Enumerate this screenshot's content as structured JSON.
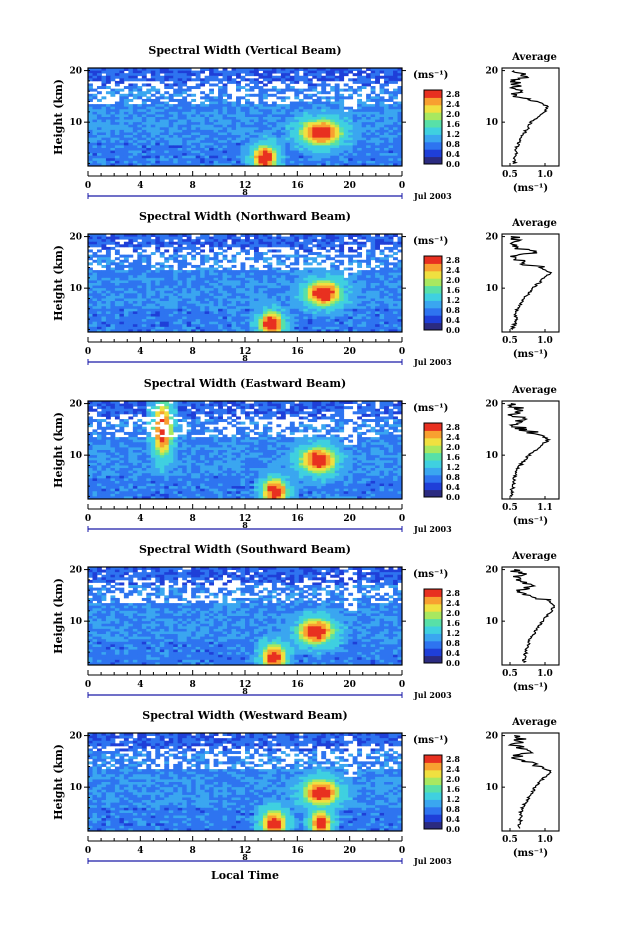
{
  "x_axis_label": "Local Time",
  "date_label": "Jul 2003",
  "day_marker": "8",
  "y_axis_label": "Height (km)",
  "unit_label": "(ms⁻¹)",
  "avg_title": "Average",
  "avg_unit_label": "(ms⁻¹)",
  "colorbar_ticks": [
    "2.8",
    "2.4",
    "2.0",
    "1.6",
    "1.2",
    "0.8",
    "0.4",
    "0.0"
  ],
  "x_tick_labels": [
    "0",
    "4",
    "8",
    "12",
    "16",
    "20",
    "0"
  ],
  "y_tick_labels": [
    "20",
    "10"
  ],
  "colors": {
    "colormap": [
      "#2b2b80",
      "#1f3fd8",
      "#2e74f0",
      "#3aa6f0",
      "#3fd0e0",
      "#58e0a8",
      "#a8e860",
      "#f0e040",
      "#f8a030",
      "#e83020"
    ],
    "axis": "#000000",
    "date_axis": "#1a1aa8"
  },
  "chart_data": [
    {
      "type": "heatmap",
      "title": "Spectral Width (Vertical Beam)",
      "xlabel": "Local Time",
      "ylabel": "Height (km)",
      "xlim": [
        0,
        24
      ],
      "ylim": [
        1.5,
        20.5
      ],
      "colorbar": {
        "label": "(ms⁻¹)",
        "range": [
          0.0,
          2.8
        ]
      },
      "average_profile": {
        "title": "Average",
        "xlabel": "(ms⁻¹)",
        "xlim": [
          0.5,
          1.2
        ],
        "x_tick_labels": [
          "0.5",
          "1.0"
        ],
        "height": [
          2,
          3,
          4,
          5,
          6,
          7,
          8,
          9,
          10,
          11,
          12,
          13,
          14,
          15,
          16,
          17,
          18,
          19,
          20
        ],
        "width": [
          0.65,
          0.66,
          0.67,
          0.68,
          0.7,
          0.74,
          0.78,
          0.82,
          0.86,
          0.95,
          1.02,
          1.06,
          0.95,
          0.72,
          0.68,
          0.7,
          0.66,
          0.78,
          0.65
        ]
      }
    },
    {
      "type": "heatmap",
      "title": "Spectral Width (Northward Beam)",
      "xlabel": "Local Time",
      "ylabel": "Height (km)",
      "xlim": [
        0,
        24
      ],
      "ylim": [
        1.5,
        20.5
      ],
      "colorbar": {
        "label": "(ms⁻¹)",
        "range": [
          0.0,
          2.8
        ]
      },
      "average_profile": {
        "title": "Average",
        "xlabel": "(ms⁻¹)",
        "xlim": [
          0.5,
          1.15
        ],
        "x_tick_labels": [
          "0.5",
          "1.0"
        ],
        "height": [
          2,
          3,
          4,
          5,
          6,
          7,
          8,
          9,
          10,
          11,
          12,
          13,
          14,
          15,
          16,
          17,
          18,
          19,
          20
        ],
        "width": [
          0.62,
          0.64,
          0.66,
          0.66,
          0.68,
          0.72,
          0.76,
          0.8,
          0.84,
          0.92,
          0.98,
          1.05,
          0.95,
          0.7,
          0.62,
          0.85,
          0.6,
          0.7,
          0.6
        ]
      }
    },
    {
      "type": "heatmap",
      "title": "Spectral Width (Eastward Beam)",
      "xlabel": "Local Time",
      "ylabel": "Height (km)",
      "xlim": [
        0,
        24
      ],
      "ylim": [
        1.5,
        20.5
      ],
      "colorbar": {
        "label": "(ms⁻¹)",
        "range": [
          0.0,
          2.8
        ]
      },
      "average_profile": {
        "title": "Average",
        "xlabel": "(ms⁻¹)",
        "xlim": [
          0.45,
          1.1
        ],
        "x_tick_labels": [
          "0.5",
          "1.1"
        ],
        "height": [
          2,
          3,
          4,
          5,
          6,
          7,
          8,
          9,
          10,
          11,
          12,
          13,
          14,
          15,
          16,
          17,
          18,
          19,
          20
        ],
        "width": [
          0.55,
          0.56,
          0.58,
          0.58,
          0.6,
          0.62,
          0.66,
          0.7,
          0.76,
          0.84,
          0.9,
          0.98,
          0.88,
          0.68,
          0.6,
          0.64,
          0.58,
          0.66,
          0.55
        ]
      }
    },
    {
      "type": "heatmap",
      "title": "Spectral Width (Southward Beam)",
      "xlabel": "Local Time",
      "ylabel": "Height (km)",
      "xlim": [
        0,
        24
      ],
      "ylim": [
        1.5,
        20.5
      ],
      "colorbar": {
        "label": "(ms⁻¹)",
        "range": [
          0.0,
          2.8
        ]
      },
      "average_profile": {
        "title": "Average",
        "xlabel": "(ms⁻¹)",
        "xlim": [
          0.45,
          1.15
        ],
        "x_tick_labels": [
          "0.5",
          "1.0"
        ],
        "height": [
          2,
          3,
          4,
          5,
          6,
          7,
          8,
          9,
          10,
          11,
          12,
          13,
          14,
          15,
          16,
          17,
          18,
          19,
          20
        ],
        "width": [
          0.72,
          0.73,
          0.74,
          0.76,
          0.78,
          0.82,
          0.86,
          0.9,
          0.95,
          1.0,
          1.06,
          1.1,
          1.02,
          0.78,
          0.66,
          0.8,
          0.6,
          0.7,
          0.6
        ]
      }
    },
    {
      "type": "heatmap",
      "title": "Spectral Width (Westward Beam)",
      "xlabel": "Local Time",
      "ylabel": "Height (km)",
      "xlim": [
        0,
        24
      ],
      "ylim": [
        1.5,
        20.5
      ],
      "colorbar": {
        "label": "(ms⁻¹)",
        "range": [
          0.0,
          2.8
        ]
      },
      "average_profile": {
        "title": "Average",
        "xlabel": "(ms⁻¹)",
        "xlim": [
          0.45,
          1.15
        ],
        "x_tick_labels": [
          "0.5",
          "1.0"
        ],
        "height": [
          2,
          3,
          4,
          5,
          6,
          7,
          8,
          9,
          10,
          11,
          12,
          13,
          14,
          15,
          16,
          17,
          18,
          19,
          20
        ],
        "width": [
          0.66,
          0.67,
          0.68,
          0.68,
          0.7,
          0.74,
          0.78,
          0.82,
          0.86,
          0.92,
          0.98,
          1.05,
          0.92,
          0.72,
          0.62,
          0.82,
          0.6,
          0.7,
          0.6
        ]
      }
    }
  ]
}
